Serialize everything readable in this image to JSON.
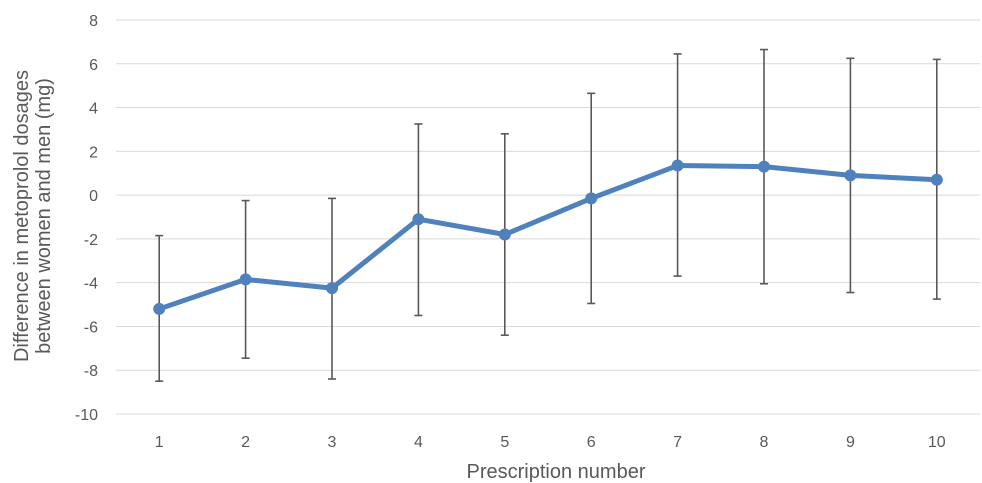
{
  "chart_data": {
    "type": "line",
    "x": [
      "1",
      "2",
      "3",
      "4",
      "5",
      "6",
      "7",
      "8",
      "9",
      "10"
    ],
    "series": [
      {
        "values": [
          -5.2,
          -3.85,
          -4.25,
          -1.1,
          -1.8,
          -0.15,
          1.35,
          1.3,
          0.9,
          0.7
        ],
        "error_low": [
          -8.5,
          -7.45,
          -8.4,
          -5.5,
          -6.4,
          -4.95,
          -3.7,
          -4.05,
          -4.45,
          -4.75
        ],
        "error_high": [
          -1.85,
          -0.25,
          -0.15,
          3.25,
          2.8,
          4.65,
          6.45,
          6.65,
          6.25,
          6.2
        ]
      }
    ],
    "xlabel": "Prescription number",
    "ylabel_lines": [
      "Difference in metoprolol dosages",
      "between women and men (mg)"
    ],
    "ylim": [
      -10,
      8
    ],
    "yticks": [
      8,
      6,
      4,
      2,
      0,
      -2,
      -4,
      -6,
      -8,
      -10
    ],
    "grid": true,
    "colors": {
      "series": "#4f81bd",
      "error_bars": "#595959",
      "grid": "#d9d9d9",
      "text": "#595959"
    }
  }
}
